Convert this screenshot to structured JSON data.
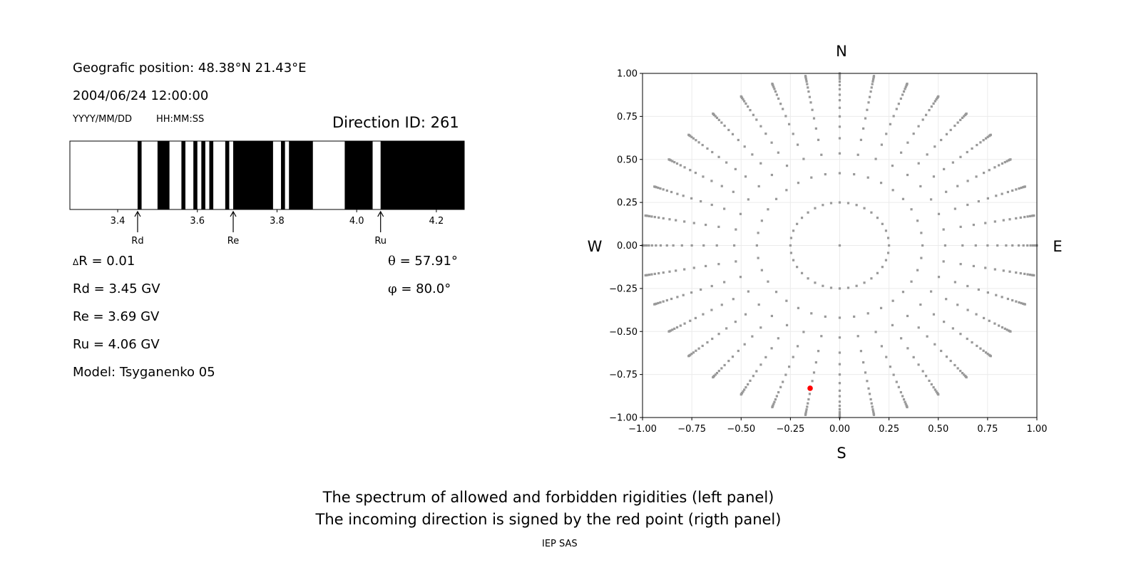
{
  "left_panel": {
    "position": "Geografic position: 48.38°N 21.43°E",
    "datetime": "2004/06/24 12:00:00",
    "date_format": "YYYY/MM/DD",
    "time_format": "HH:MM:SS",
    "direction_id": "Direction ID: 261",
    "delta_symbol": "Δ",
    "delta_r": "R = 0.01",
    "rd": "Rd = 3.45 GV",
    "re": "Re = 3.69 GV",
    "ru": "Ru = 4.06 GV",
    "model": "Model: Tsyganenko 05",
    "theta_symbol": "θ",
    "theta": " = 57.91°",
    "phi_symbol": "φ",
    "phi": " = 80.0°"
  },
  "chart_data": [
    {
      "type": "bar",
      "description_role": "rigidity spectrum (black = forbidden, white = allowed)",
      "xlim": [
        3.28,
        4.27
      ],
      "xticks": [
        3.4,
        3.6,
        3.8,
        4.0,
        4.2
      ],
      "xtick_labels": [
        "3.4",
        "3.6",
        "3.8",
        "4.0",
        "4.2"
      ],
      "forbidden_intervals": [
        [
          3.45,
          3.46
        ],
        [
          3.5,
          3.53
        ],
        [
          3.56,
          3.57
        ],
        [
          3.59,
          3.6
        ],
        [
          3.61,
          3.62
        ],
        [
          3.63,
          3.64
        ],
        [
          3.67,
          3.68
        ],
        [
          3.69,
          3.79
        ],
        [
          3.81,
          3.82
        ],
        [
          3.83,
          3.89
        ],
        [
          3.97,
          4.04
        ],
        [
          4.06,
          4.27
        ]
      ],
      "annotations": [
        {
          "label": "Rd",
          "x": 3.45
        },
        {
          "label": "Re",
          "x": 3.69
        },
        {
          "label": "Ru",
          "x": 4.06
        }
      ],
      "colors": {
        "forbidden": "#000000",
        "allowed": "#ffffff"
      }
    },
    {
      "type": "scatter",
      "xlim": [
        -1,
        1
      ],
      "ylim": [
        -1,
        1
      ],
      "ticks": [
        -1.0,
        -0.75,
        -0.5,
        -0.25,
        0.0,
        0.25,
        0.5,
        0.75,
        1.0
      ],
      "tick_labels": [
        "−1.00",
        "−0.75",
        "−0.50",
        "−0.25",
        "0.00",
        "0.25",
        "0.50",
        "0.75",
        "1.00"
      ],
      "grid": true,
      "compass": {
        "north": "N",
        "south": "S",
        "west": "W",
        "east": "E"
      },
      "center_point": [
        0,
        0
      ],
      "ring_radius": 0.25,
      "ring_points": 36,
      "spoke_azimuth_step_deg": 10,
      "spoke_radii": [
        0.42,
        0.535,
        0.623,
        0.69,
        0.75,
        0.8,
        0.844,
        0.876,
        0.908,
        0.932,
        0.952,
        0.968,
        0.98,
        0.99,
        0.996,
        1.0
      ],
      "highlight_point": {
        "x": -0.15,
        "y": -0.83
      },
      "colors": {
        "points": "#999999",
        "highlight": "#ff0000",
        "grid": "#ebebeb"
      }
    }
  ],
  "captions": {
    "line1": "The spectrum of allowed and forbidden rigidities (left panel)",
    "line2": "The incoming direction is signed by the red point (rigth panel)",
    "credit": "IEP SAS"
  }
}
